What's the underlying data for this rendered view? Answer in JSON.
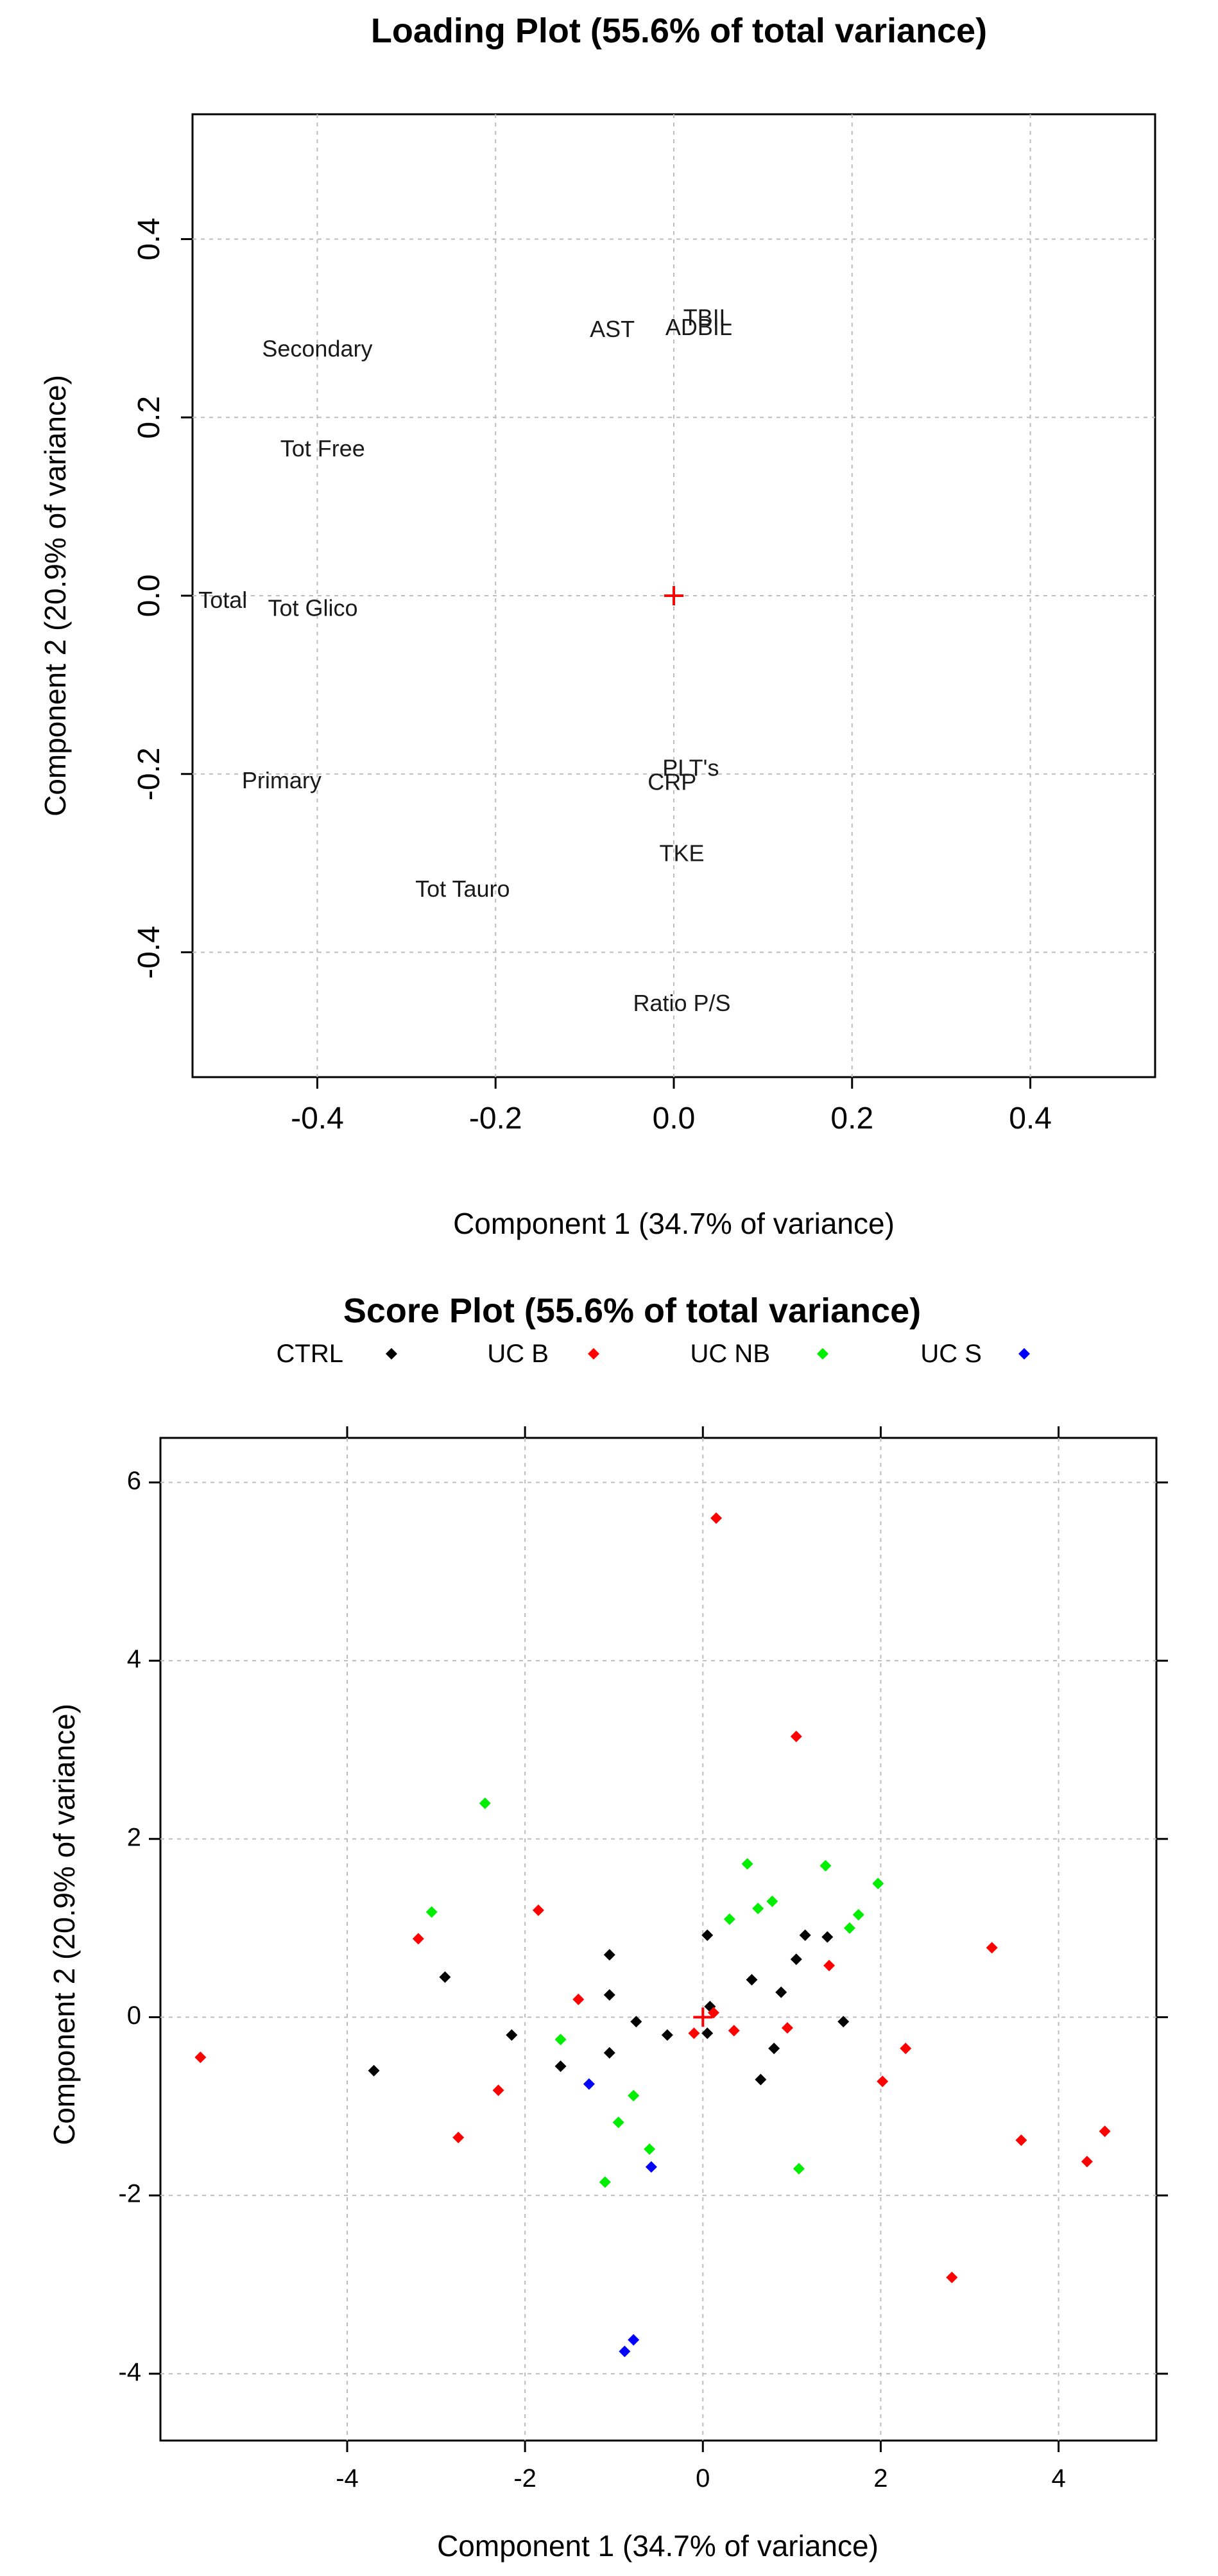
{
  "chart_data": [
    {
      "type": "scatter",
      "title": "Loading Plot (55.6% of total variance)",
      "xlabel": "Component 1 (34.7% of variance)",
      "ylabel": "Component 2 (20.9% of variance)",
      "xlim": [
        -0.54,
        0.54
      ],
      "ylim": [
        -0.54,
        0.54
      ],
      "xticks": [
        "-0.4",
        "-0.2",
        "0.0",
        "0.2",
        "0.4"
      ],
      "yticks": [
        "-0.4",
        "-0.2",
        "0.0",
        "0.2",
        "0.4"
      ],
      "xtick_values": [
        -0.4,
        -0.2,
        0.0,
        0.2,
        0.4
      ],
      "ytick_values": [
        -0.4,
        -0.2,
        0.0,
        0.2,
        0.4
      ],
      "grid": true,
      "origin_marker": "+",
      "origin_color": "#ff0000",
      "points": [
        {
          "label": "Secondary",
          "x": -0.4,
          "y": 0.275
        },
        {
          "label": "Tot Free",
          "x": -0.394,
          "y": 0.163
        },
        {
          "label": "Total",
          "x": -0.506,
          "y": -0.007
        },
        {
          "label": "Tot Glico",
          "x": -0.405,
          "y": -0.016
        },
        {
          "label": "Primary",
          "x": -0.44,
          "y": -0.209
        },
        {
          "label": "Tot Tauro",
          "x": -0.237,
          "y": -0.331
        },
        {
          "label": "AST",
          "x": -0.069,
          "y": 0.297
        },
        {
          "label": "TBIL",
          "x": 0.038,
          "y": 0.31
        },
        {
          "label": "ADBIL",
          "x": 0.028,
          "y": 0.299
        },
        {
          "label": "PLT's",
          "x": 0.019,
          "y": -0.195
        },
        {
          "label": "CRP",
          "x": -0.002,
          "y": -0.211
        },
        {
          "label": "TKE",
          "x": 0.009,
          "y": -0.291
        },
        {
          "label": "Ratio P/S",
          "x": 0.009,
          "y": -0.459
        }
      ]
    },
    {
      "type": "scatter",
      "title": "Score Plot (55.6% of total variance)",
      "xlabel": "Component 1 (34.7% of variance)",
      "ylabel": "Component 2 (20.9% of variance)",
      "xlim": [
        -6.1,
        5.1
      ],
      "ylim": [
        -4.75,
        6.5
      ],
      "xticks": [
        "-4",
        "-2",
        "0",
        "2",
        "4"
      ],
      "yticks": [
        "-4",
        "-2",
        "0",
        "2",
        "4",
        "6"
      ],
      "xtick_values": [
        -4,
        -2,
        0,
        2,
        4
      ],
      "ytick_values": [
        -4,
        -2,
        0,
        2,
        4,
        6
      ],
      "grid": true,
      "legend_position": "top",
      "origin_marker": "+",
      "origin_color": "#ff0000",
      "series": [
        {
          "name": "CTRL",
          "color": "#000000",
          "points": [
            [
              -3.7,
              -0.6
            ],
            [
              -2.9,
              0.45
            ],
            [
              -2.15,
              -0.2
            ],
            [
              -1.6,
              -0.55
            ],
            [
              -1.05,
              0.7
            ],
            [
              -1.05,
              0.25
            ],
            [
              -1.05,
              -0.4
            ],
            [
              -0.75,
              -0.05
            ],
            [
              -0.4,
              -0.2
            ],
            [
              0.05,
              0.92
            ],
            [
              0.08,
              0.12
            ],
            [
              0.05,
              -0.18
            ],
            [
              0.55,
              0.42
            ],
            [
              0.65,
              -0.7
            ],
            [
              0.8,
              -0.35
            ],
            [
              0.88,
              0.28
            ],
            [
              1.05,
              0.65
            ],
            [
              1.15,
              0.92
            ],
            [
              1.4,
              0.9
            ],
            [
              1.58,
              -0.05
            ]
          ]
        },
        {
          "name": "UC B",
          "color": "#ff0000",
          "points": [
            [
              -5.65,
              -0.45
            ],
            [
              -3.2,
              0.88
            ],
            [
              -2.75,
              -1.35
            ],
            [
              -2.3,
              -0.82
            ],
            [
              -1.85,
              1.2
            ],
            [
              -1.4,
              0.2
            ],
            [
              -0.1,
              -0.18
            ],
            [
              0.12,
              0.05
            ],
            [
              0.15,
              5.6
            ],
            [
              0.35,
              -0.15
            ],
            [
              0.95,
              -0.12
            ],
            [
              1.05,
              3.15
            ],
            [
              1.42,
              0.58
            ],
            [
              2.02,
              -0.72
            ],
            [
              2.28,
              -0.35
            ],
            [
              2.8,
              -2.92
            ],
            [
              3.25,
              0.78
            ],
            [
              3.58,
              -1.38
            ],
            [
              4.32,
              -1.62
            ],
            [
              4.52,
              -1.28
            ]
          ]
        },
        {
          "name": "UC NB",
          "color": "#00ee00",
          "points": [
            [
              -3.05,
              1.18
            ],
            [
              -2.45,
              2.4
            ],
            [
              -1.6,
              -0.25
            ],
            [
              -1.1,
              -1.85
            ],
            [
              -0.95,
              -1.18
            ],
            [
              -0.78,
              -0.88
            ],
            [
              -0.6,
              -1.48
            ],
            [
              0.3,
              1.1
            ],
            [
              0.5,
              1.72
            ],
            [
              0.62,
              1.22
            ],
            [
              0.78,
              1.3
            ],
            [
              1.08,
              -1.7
            ],
            [
              1.38,
              1.7
            ],
            [
              1.65,
              1.0
            ],
            [
              1.75,
              1.15
            ],
            [
              1.97,
              1.5
            ]
          ]
        },
        {
          "name": "UC S",
          "color": "#0000ff",
          "points": [
            [
              -1.28,
              -0.75
            ],
            [
              -0.58,
              -1.68
            ],
            [
              -0.88,
              -3.75
            ],
            [
              -0.78,
              -3.62
            ]
          ]
        }
      ]
    }
  ]
}
